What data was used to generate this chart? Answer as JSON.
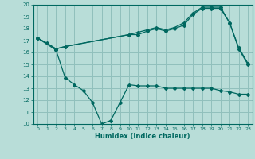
{
  "title": "",
  "xlabel": "Humidex (Indice chaleur)",
  "bg_color": "#b8ddd8",
  "grid_color": "#90c0bc",
  "line_color": "#006860",
  "xlim": [
    -0.5,
    23.5
  ],
  "ylim": [
    10,
    20
  ],
  "xticks": [
    0,
    1,
    2,
    3,
    4,
    5,
    6,
    7,
    8,
    9,
    10,
    11,
    12,
    13,
    14,
    15,
    16,
    17,
    18,
    19,
    20,
    21,
    22,
    23
  ],
  "yticks": [
    10,
    11,
    12,
    13,
    14,
    15,
    16,
    17,
    18,
    19,
    20
  ],
  "series1_x": [
    0,
    1,
    2,
    3,
    10,
    11,
    12,
    13,
    14,
    15,
    16,
    17,
    18,
    19,
    20,
    21,
    22,
    23
  ],
  "series1_y": [
    17.2,
    16.8,
    16.3,
    16.5,
    17.5,
    17.5,
    17.8,
    18.0,
    17.8,
    18.0,
    18.3,
    19.2,
    19.7,
    19.7,
    19.7,
    18.5,
    16.3,
    15.0
  ],
  "series2_x": [
    0,
    2,
    3,
    4,
    5,
    6,
    7,
    8,
    9,
    10,
    11,
    12,
    13,
    14,
    15,
    16,
    17,
    18,
    19,
    20,
    21,
    22,
    23
  ],
  "series2_y": [
    17.2,
    16.2,
    13.9,
    13.3,
    12.8,
    11.8,
    10.0,
    10.3,
    11.8,
    13.3,
    13.2,
    13.2,
    13.2,
    13.0,
    13.0,
    13.0,
    13.0,
    13.0,
    13.0,
    12.8,
    12.7,
    12.5,
    12.5
  ],
  "series3_x": [
    0,
    2,
    3,
    10,
    11,
    12,
    13,
    14,
    15,
    16,
    17,
    18,
    19,
    20,
    21,
    22,
    23
  ],
  "series3_y": [
    17.2,
    16.3,
    16.5,
    17.5,
    17.7,
    17.9,
    18.1,
    17.9,
    18.1,
    18.5,
    19.3,
    19.8,
    19.8,
    19.8,
    18.5,
    16.4,
    15.1
  ]
}
